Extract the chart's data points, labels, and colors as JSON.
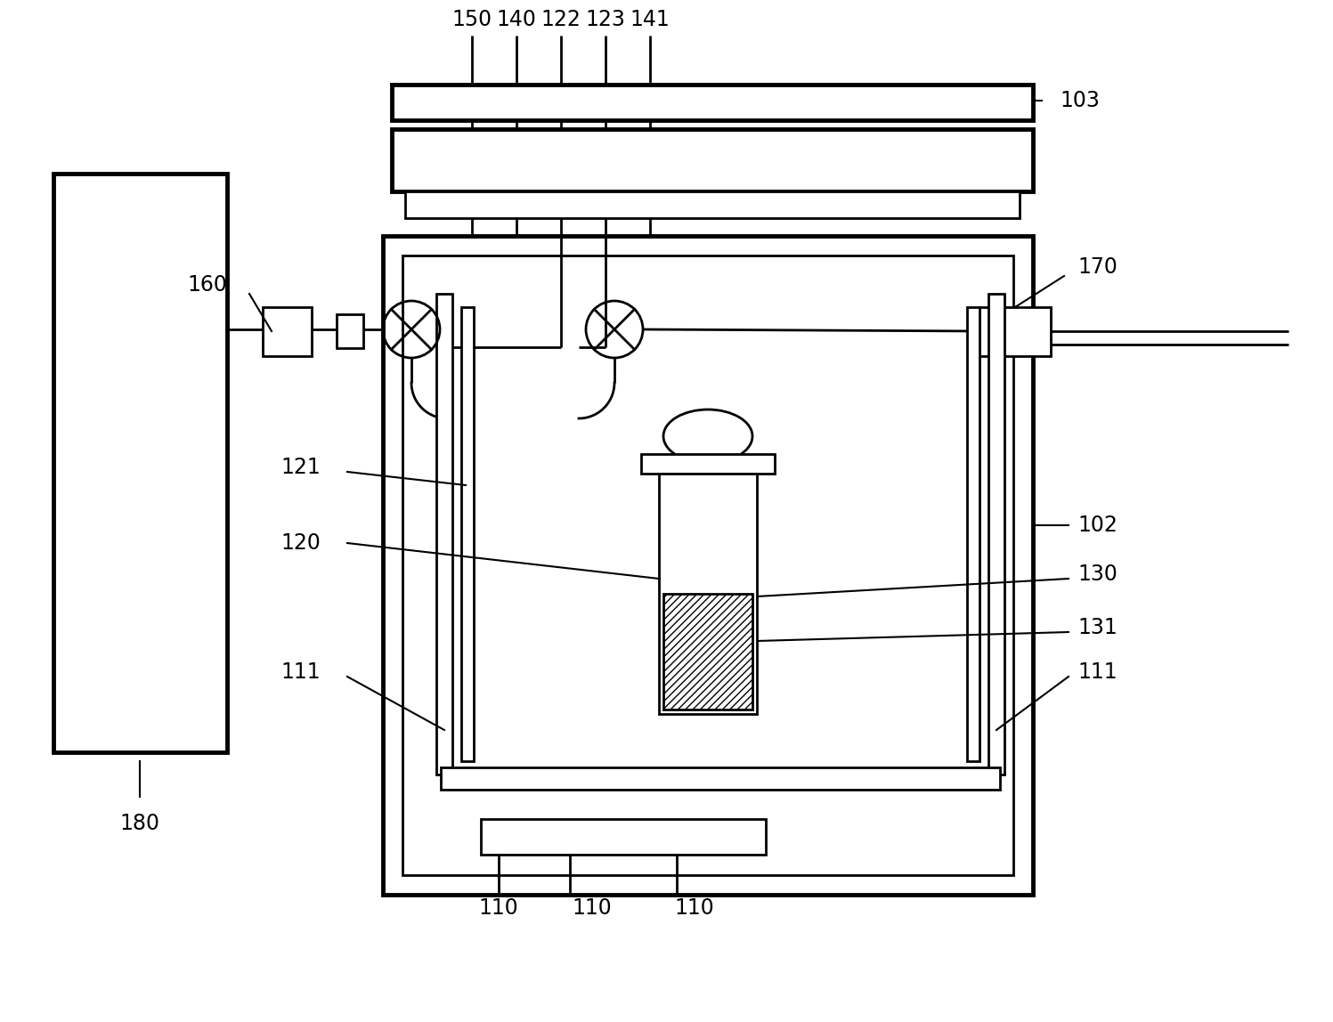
{
  "bg_color": "#ffffff",
  "lc": "#000000",
  "lw": 2.0,
  "tlw": 3.5,
  "fs": 16,
  "fig_w": 14.97,
  "fig_h": 11.48,
  "dpi": 100
}
